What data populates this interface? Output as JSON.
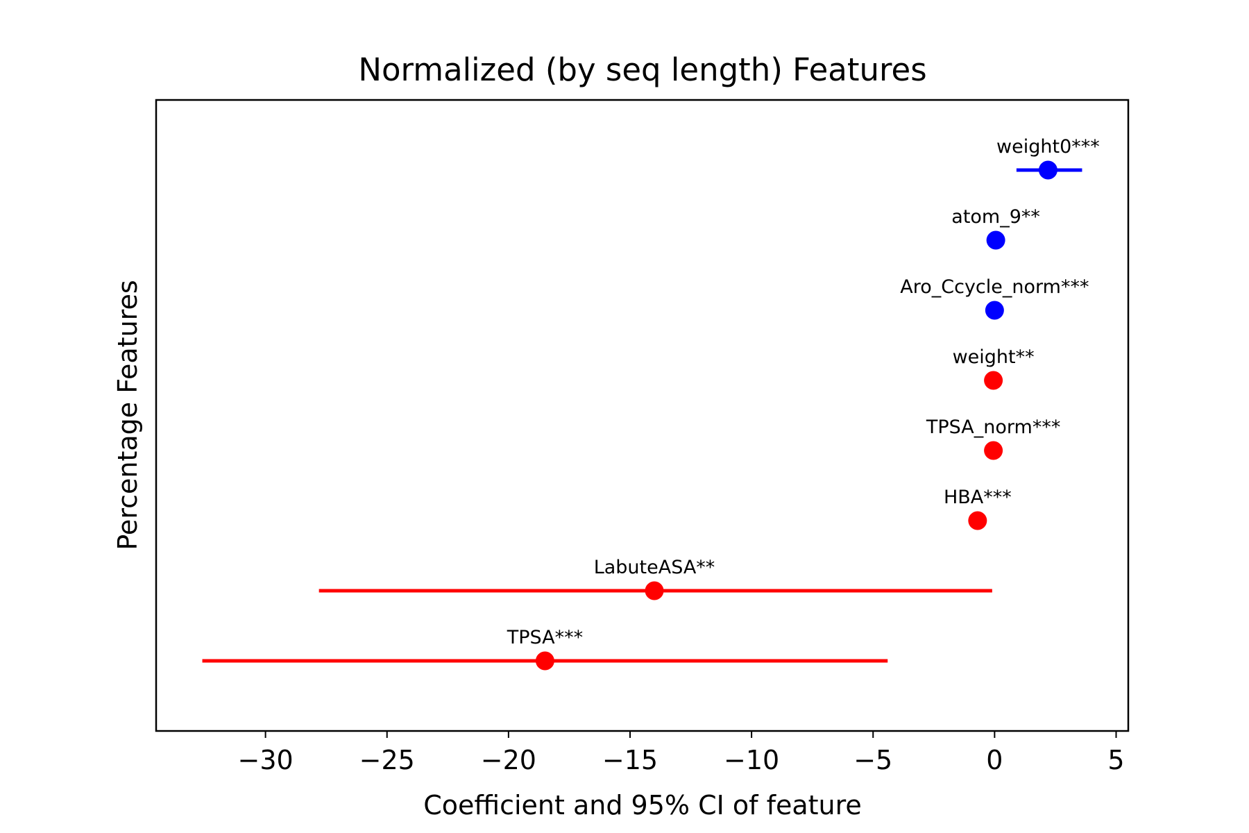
{
  "chart_data": {
    "type": "scatter",
    "title": "Normalized (by seq length) Features",
    "xlabel": "Coefficient and 95% CI of feature",
    "ylabel": "Percentage Features",
    "xlim": [
      -34.5,
      5.5
    ],
    "xticks": [
      -30,
      -25,
      -20,
      -15,
      -10,
      -5,
      0,
      5
    ],
    "xtick_labels": [
      "−30",
      "−25",
      "−20",
      "−15",
      "−10",
      "−5",
      "0",
      "5"
    ],
    "grid": false,
    "colors": {
      "positive": "#0000ff",
      "negative": "#ff0000"
    },
    "features": [
      {
        "label": "weight0***",
        "coef": 2.2,
        "ci_low": 0.9,
        "ci_high": 3.6,
        "color": "#0000ff"
      },
      {
        "label": "atom_9**",
        "coef": 0.05,
        "ci_low": 0.05,
        "ci_high": 0.05,
        "color": "#0000ff"
      },
      {
        "label": "Aro_Ccycle_norm***",
        "coef": 0.0,
        "ci_low": 0.0,
        "ci_high": 0.0,
        "color": "#0000ff"
      },
      {
        "label": "weight**",
        "coef": -0.05,
        "ci_low": -0.05,
        "ci_high": -0.05,
        "color": "#ff0000"
      },
      {
        "label": "TPSA_norm***",
        "coef": -0.05,
        "ci_low": -0.05,
        "ci_high": -0.05,
        "color": "#ff0000"
      },
      {
        "label": "HBA***",
        "coef": -0.7,
        "ci_low": -0.8,
        "ci_high": -0.6,
        "color": "#ff0000"
      },
      {
        "label": "LabuteASA**",
        "coef": -14.0,
        "ci_low": -27.8,
        "ci_high": -0.1,
        "color": "#ff0000"
      },
      {
        "label": "TPSA***",
        "coef": -18.5,
        "ci_low": -32.6,
        "ci_high": -4.4,
        "color": "#ff0000"
      }
    ]
  }
}
